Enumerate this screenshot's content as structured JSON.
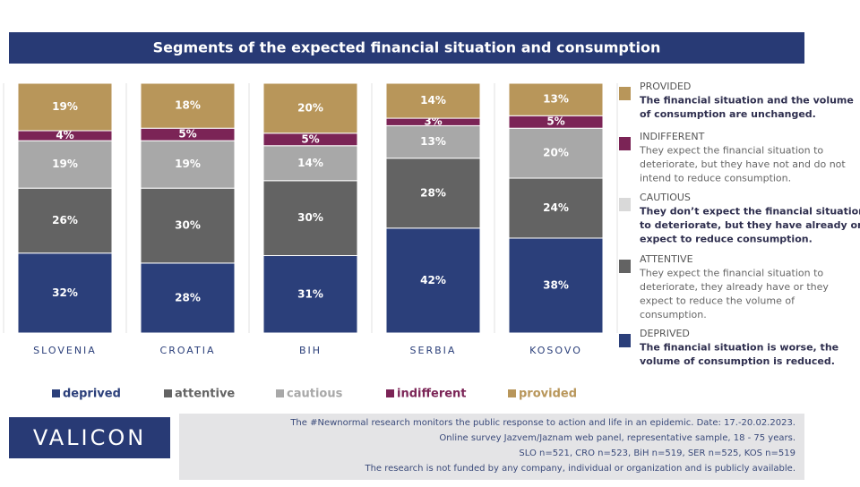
{
  "chart_data": {
    "type": "stacked_bar",
    "title": "Segments of the expected financial situation and consumption",
    "categories": [
      "SLOVENIA",
      "CROATIA",
      "BIH",
      "SERBIA",
      "KOSOVO"
    ],
    "ylim": [
      0,
      100
    ],
    "series": [
      {
        "name": "deprived",
        "color": "#2b3f7a",
        "values": [
          32,
          28,
          31,
          42,
          38
        ],
        "value_labels": [
          "32%",
          "28%",
          "31%",
          "42%",
          "38%"
        ]
      },
      {
        "name": "attentive",
        "color": "#636363",
        "values": [
          26,
          30,
          30,
          28,
          24
        ],
        "value_labels": [
          "26%",
          "30%",
          "30%",
          "28%",
          "24%"
        ]
      },
      {
        "name": "cautious",
        "color": "#a8a8a8",
        "values": [
          19,
          19,
          14,
          13,
          20
        ],
        "value_labels": [
          "19%",
          "19%",
          "14%",
          "13%",
          "20%"
        ]
      },
      {
        "name": "indifferent",
        "color": "#7b2456",
        "values": [
          4,
          5,
          5,
          3,
          5
        ],
        "value_labels": [
          "4%",
          "5%",
          "5%",
          "3%",
          "5%"
        ]
      },
      {
        "name": "provided",
        "color": "#b8965a",
        "values": [
          19,
          18,
          20,
          14,
          13
        ],
        "value_labels": [
          "19%",
          "18%",
          "20%",
          "14%",
          "13%"
        ]
      }
    ]
  },
  "side_legend": [
    {
      "heading": "PROVIDED",
      "color": "#b8965a",
      "lines": [
        "The financial situation and the volume",
        "of consumption are unchanged."
      ]
    },
    {
      "heading": "INDIFFERENT",
      "color": "#7b2456",
      "lines": [
        "They expect the financial situation to",
        "deteriorate, but they have not and do not",
        "intend to reduce consumption."
      ]
    },
    {
      "heading": "CAUTIOUS",
      "color": "#d9d9d9",
      "lines": [
        "They don’t expect the financial situation",
        "to deteriorate, but they have already or",
        "expect to reduce consumption."
      ]
    },
    {
      "heading": "ATTENTIVE",
      "color": "#636363",
      "lines": [
        "They expect the financial situation to",
        "deteriorate, they already have or they",
        "expect to reduce the volume of",
        "consumption."
      ]
    },
    {
      "heading": "DEPRIVED",
      "color": "#2b3f7a",
      "lines": [
        "The financial situation is worse, the",
        "volume of consumption is reduced."
      ]
    }
  ],
  "logo": "VALICON",
  "footer": [
    "The #Newnormal research monitors the public response to action and life in an epidemic. Date: 17.-20.02.2023.",
    "Online survey Jazvem/Jaznam web panel, representative sample, 18 - 75 years.",
    "SLO n=521, CRO n=523, BiH n=519, SER n=525, KOS n=519",
    "The research is not funded by any company, individual or organization and is publicly available."
  ]
}
